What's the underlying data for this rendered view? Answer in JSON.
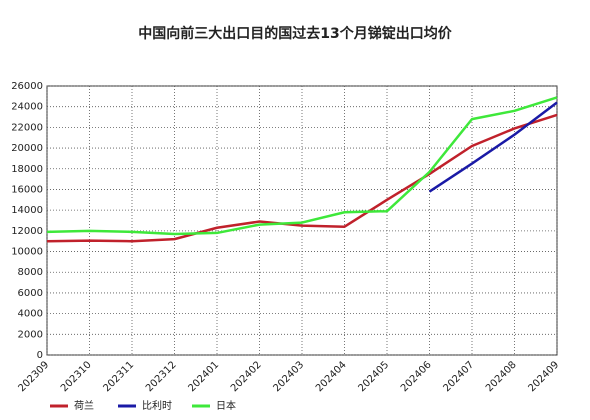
{
  "chart_data": {
    "type": "line",
    "title": "中国向前三大出口目的国过去13个月锑锭出口均价",
    "categories": [
      "202309",
      "202310",
      "202311",
      "202312",
      "202401",
      "202402",
      "202403",
      "202404",
      "202405",
      "202406",
      "202407",
      "202408",
      "202409"
    ],
    "series": [
      {
        "name": "荷兰",
        "color": "#c0212b",
        "values": [
          11000,
          11050,
          11000,
          11200,
          12300,
          12900,
          12500,
          12400,
          15000,
          17500,
          20200,
          21900,
          23200
        ]
      },
      {
        "name": "比利时",
        "color": "#1a1aa6",
        "values": [
          null,
          null,
          null,
          null,
          null,
          null,
          null,
          null,
          null,
          15800,
          18500,
          21300,
          24400
        ]
      },
      {
        "name": "日本",
        "color": "#3ee83a",
        "values": [
          11900,
          12000,
          11900,
          11700,
          11800,
          12600,
          12800,
          13800,
          13900,
          17700,
          22800,
          23600,
          24900
        ]
      }
    ],
    "ylim": [
      0,
      26000
    ],
    "yticks": [
      0,
      2000,
      4000,
      6000,
      8000,
      10000,
      12000,
      14000,
      16000,
      18000,
      20000,
      22000,
      24000,
      26000
    ],
    "grid": true
  }
}
